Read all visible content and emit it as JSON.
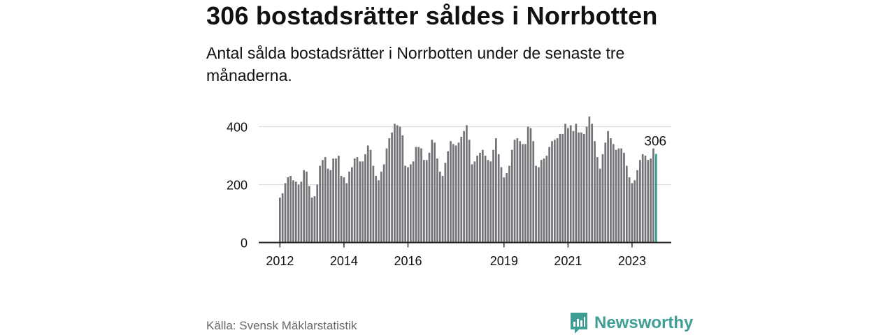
{
  "title": "306 bostadsrätter såldes i Norrbotten",
  "subtitle": "Antal sålda bostadsrätter i Norrbotten under de senaste tre månaderna.",
  "source": "Källa: Svensk Mäklarstatistik",
  "brand": "Newsworthy",
  "colors": {
    "bar": "#737378",
    "highlight": "#2a9d8f",
    "brand": "#3f9e94",
    "grid": "#dddddd"
  },
  "chart_data": {
    "type": "bar",
    "title": "",
    "xlabel": "",
    "ylabel": "",
    "ylim": [
      0,
      450
    ],
    "yticks": [
      0,
      200,
      400
    ],
    "xtick_labels": [
      "2012",
      "2014",
      "2016",
      "2019",
      "2021",
      "2023"
    ],
    "start": "2012-01",
    "highlight_label": "306",
    "values": [
      155,
      170,
      205,
      225,
      230,
      215,
      210,
      200,
      210,
      250,
      245,
      195,
      155,
      160,
      200,
      265,
      285,
      295,
      255,
      250,
      290,
      290,
      300,
      230,
      225,
      205,
      245,
      260,
      290,
      295,
      280,
      280,
      305,
      335,
      320,
      265,
      230,
      215,
      245,
      270,
      325,
      360,
      380,
      410,
      405,
      400,
      370,
      265,
      260,
      270,
      280,
      330,
      330,
      325,
      285,
      285,
      310,
      355,
      345,
      290,
      245,
      230,
      275,
      315,
      350,
      340,
      335,
      345,
      365,
      385,
      405,
      355,
      270,
      280,
      300,
      310,
      320,
      300,
      285,
      280,
      320,
      360,
      305,
      260,
      225,
      240,
      265,
      320,
      355,
      360,
      350,
      340,
      340,
      400,
      395,
      350,
      265,
      260,
      285,
      290,
      300,
      330,
      350,
      355,
      360,
      375,
      375,
      410,
      395,
      405,
      385,
      410,
      380,
      380,
      375,
      400,
      435,
      410,
      350,
      295,
      255,
      305,
      345,
      385,
      360,
      340,
      320,
      325,
      325,
      310,
      265,
      225,
      205,
      215,
      250,
      285,
      305,
      300,
      285,
      290,
      325,
      306
    ]
  }
}
